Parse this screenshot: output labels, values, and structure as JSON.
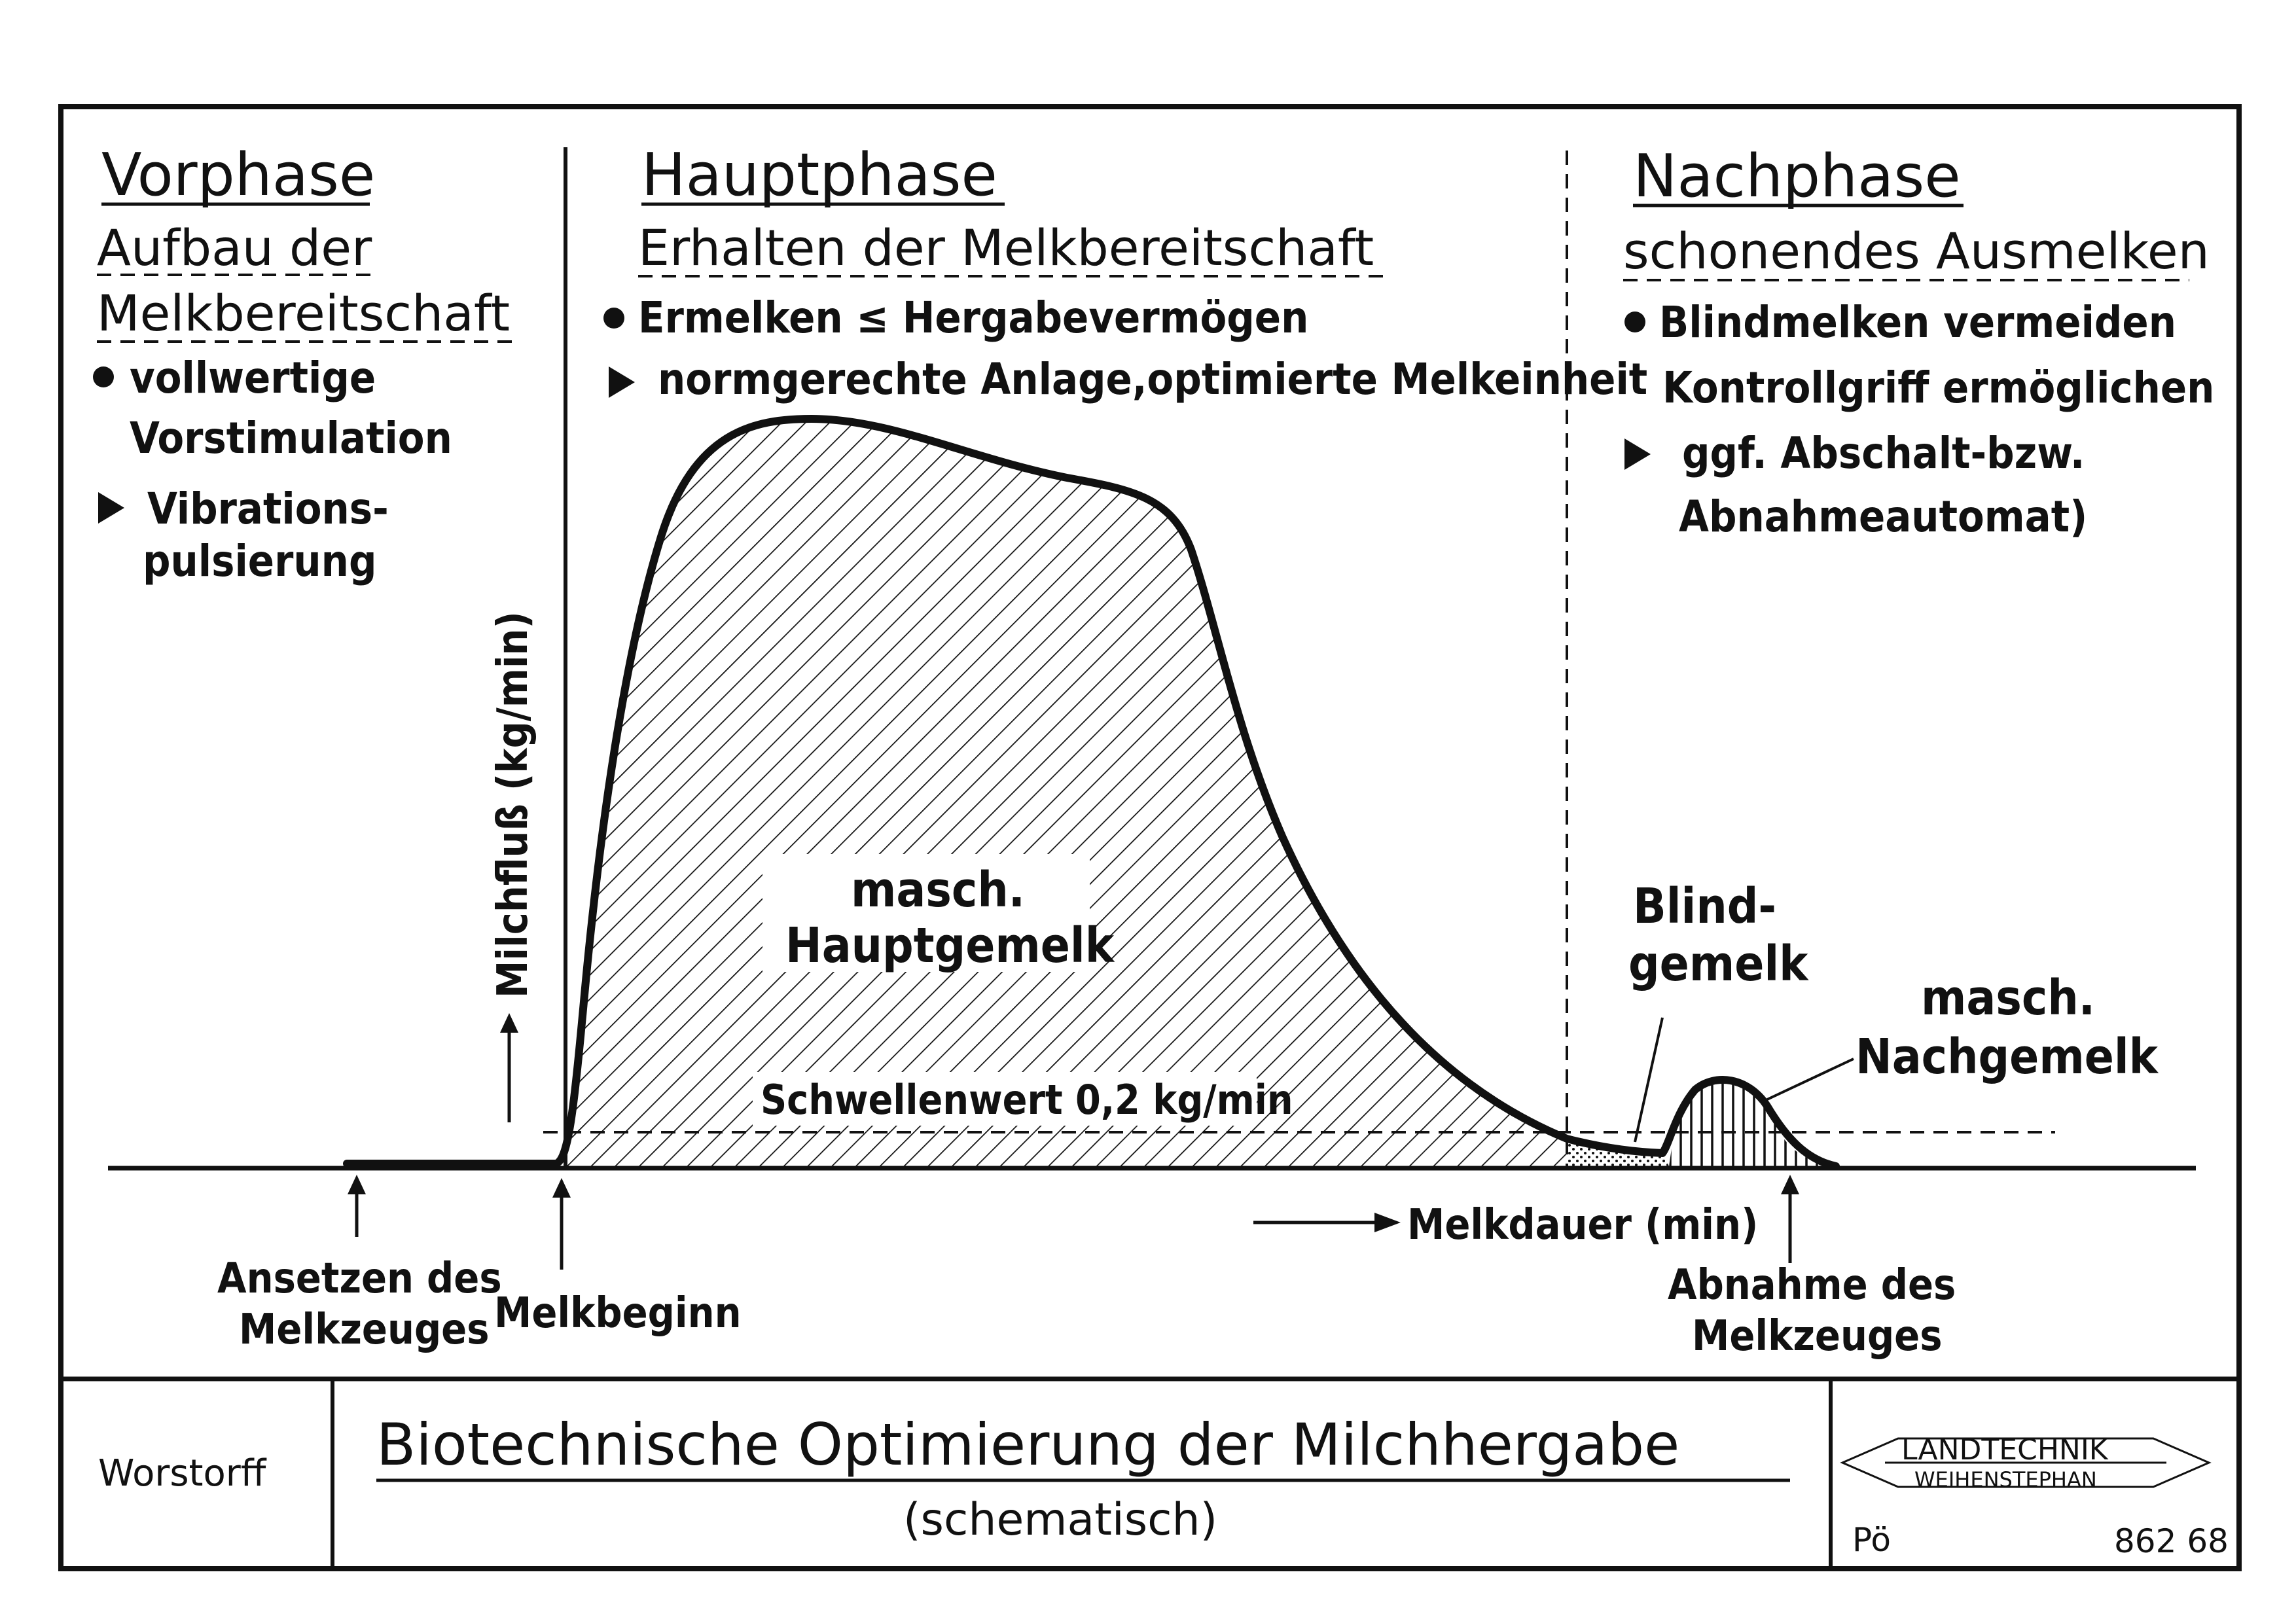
{
  "phases": {
    "vorphase": {
      "title": "Vorphase",
      "subtitle_line1": "Aufbau der",
      "subtitle_line2": "Melkbereitschaft",
      "bullet1_line1": "vollwertige",
      "bullet1_line2": "Vorstimulation",
      "arrow1_line1": "Vibrations-",
      "arrow1_line2": "pulsierung"
    },
    "hauptphase": {
      "title": "Hauptphase",
      "subtitle": "Erhalten der Melkbereitschaft",
      "bullet1": "Ermelken ≤ Hergabevermögen",
      "arrow1": "normgerechte Anlage,optimierte Melkeinheit"
    },
    "nachphase": {
      "title": "Nachphase",
      "subtitle": "schonendes Ausmelken",
      "bullet1_line1": "Blindmelken vermeiden",
      "bullet1_line2": "Kontrollgriff ermöglichen",
      "arrow1_line1": "ggf. Abschalt-bzw.",
      "arrow1_line2": "Abnahmeautomat)"
    }
  },
  "chart": {
    "y_axis_label": "Milchfluß (kg/min)",
    "x_axis_label": "Melkdauer (min)",
    "threshold_label": "Schwellenwert 0,2 kg/min",
    "area_main_line1": "masch.",
    "area_main_line2": "Hauptgemelk",
    "blind_line1": "Blind-",
    "blind_line2": "gemelk",
    "nach_line1": "masch.",
    "nach_line2": "Nachgemelk",
    "event_ansetzen_line1": "Ansetzen des",
    "event_ansetzen_line2": "Melkzeuges",
    "event_melkbeginn": "Melkbeginn",
    "event_abnahme_line1": "Abnahme des",
    "event_abnahme_line2": "Melkzeuges"
  },
  "footer": {
    "author": "Worstorff",
    "title": "Biotechnische Optimierung der Milchhergabe",
    "subtitle": "(schematisch)",
    "logo_line1": "LANDTECHNIK",
    "logo_line2": "WEIHENSTEPHAN",
    "initials": "Pö",
    "number": "862 68"
  }
}
